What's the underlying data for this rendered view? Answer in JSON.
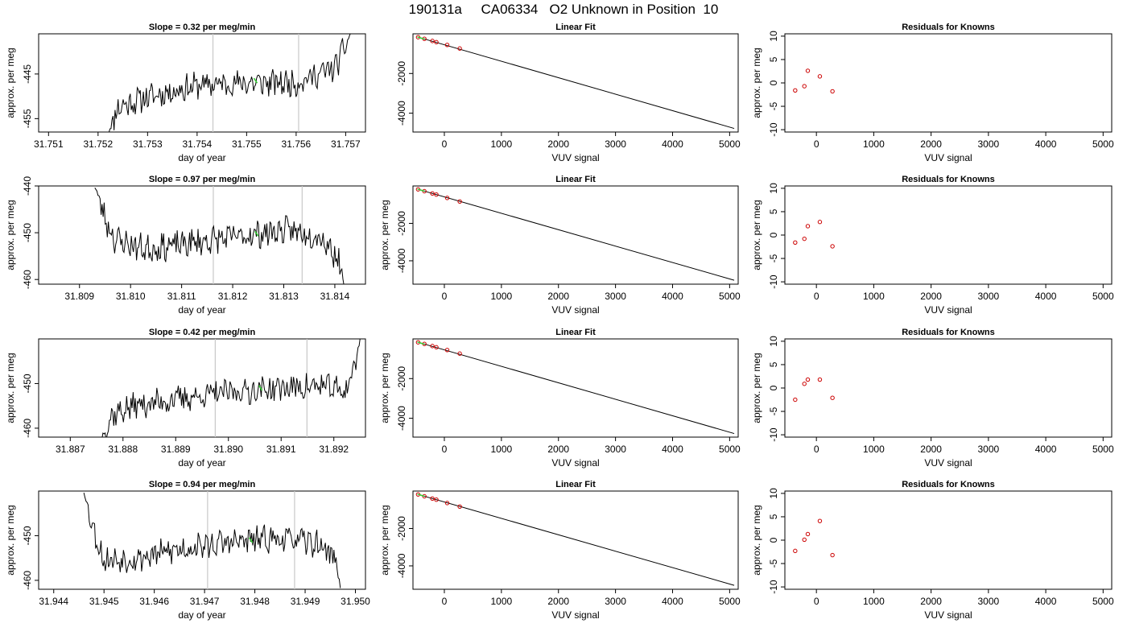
{
  "figure": {
    "title": "190131a     CA06334   O2 Unknown in Position  10",
    "colors": {
      "trace": "#000000",
      "marker_green": "#33cc33",
      "residual_red": "#cc0000",
      "vline_gray": "#c8c8c8"
    }
  },
  "chart_data": [
    {
      "type": "line",
      "panel": "slope",
      "row": 1,
      "title": "Slope =  0.32  per meg/min",
      "xlabel": "day of year",
      "ylabel": "approx. per meg",
      "xlim": [
        31.7508,
        31.7574
      ],
      "ylim": [
        -458,
        -436
      ],
      "xticks": [
        31.751,
        31.752,
        31.753,
        31.754,
        31.755,
        31.756,
        31.757
      ],
      "xtick_labels": [
        "31.751",
        "31.752",
        "31.753",
        "31.754",
        "31.755",
        "31.756",
        "31.757"
      ],
      "yticks": [
        -445,
        -455
      ],
      "ytick_labels": [
        "-445",
        "-455"
      ],
      "vlines": [
        31.75432,
        31.75605
      ],
      "green_point": [
        31.75518,
        -446.5
      ],
      "trace_seed": 11,
      "series": [
        {
          "x": [
            31.7522,
            31.7524,
            31.7529,
            31.754,
            31.755,
            31.756,
            31.7568,
            31.7571
          ],
          "y": [
            -458.5,
            -452.5,
            -450.5,
            -447.5,
            -447.0,
            -447.0,
            -443.5,
            -436
          ]
        }
      ]
    },
    {
      "type": "scatter",
      "panel": "linear-fit",
      "row": 1,
      "title": "Linear Fit",
      "xlabel": "VUV signal",
      "ylabel": "",
      "xlim": [
        -550,
        5150
      ],
      "ylim": [
        -4950,
        0
      ],
      "xticks": [
        0,
        1000,
        2000,
        3000,
        4000,
        5000
      ],
      "xtick_labels": [
        "0",
        "1000",
        "2000",
        "3000",
        "4000",
        "5000"
      ],
      "yticks": [
        -2000,
        -4000
      ],
      "ytick_labels": [
        "-2000",
        "-4000"
      ],
      "fit_line": {
        "x": [
          -460,
          5080
        ],
        "y": [
          -170,
          -4770
        ]
      },
      "known_points": {
        "x": [
          -460,
          -350,
          -210,
          -140,
          50,
          270
        ],
        "y": [
          -170,
          -250,
          -360,
          -420,
          -560,
          -740
        ]
      },
      "unknown_points": {
        "x": [
          -430,
          -390
        ],
        "y": [
          -195,
          -230
        ]
      }
    },
    {
      "type": "scatter",
      "panel": "residuals",
      "row": 1,
      "title": "Residuals for Knowns",
      "xlabel": "VUV signal",
      "ylabel": "approx. per meg",
      "xlim": [
        -550,
        5150
      ],
      "ylim": [
        -10.5,
        10.5
      ],
      "xticks": [
        0,
        1000,
        2000,
        3000,
        4000,
        5000
      ],
      "xtick_labels": [
        "0",
        "1000",
        "2000",
        "3000",
        "4000",
        "5000"
      ],
      "yticks": [
        10,
        5,
        0,
        -5,
        -10
      ],
      "ytick_labels": [
        "10",
        "5",
        "0",
        "-5",
        "-10"
      ],
      "points": {
        "x": [
          -370,
          -210,
          -150,
          60,
          280
        ],
        "y": [
          -1.6,
          -0.7,
          2.6,
          1.4,
          -1.8
        ]
      }
    },
    {
      "type": "line",
      "panel": "slope",
      "row": 2,
      "title": "Slope =  0.97  per meg/min",
      "xlabel": "day of year",
      "ylabel": "approx. per meg",
      "xlim": [
        31.8082,
        31.8146
      ],
      "ylim": [
        -461,
        -440
      ],
      "xticks": [
        31.809,
        31.81,
        31.811,
        31.812,
        31.813,
        31.814
      ],
      "xtick_labels": [
        "31.809",
        "31.810",
        "31.811",
        "31.812",
        "31.813",
        "31.814"
      ],
      "yticks": [
        -440,
        -450,
        -460
      ],
      "ytick_labels": [
        "-440",
        "-450",
        "-460"
      ],
      "vlines": [
        31.81162,
        31.81336
      ],
      "green_point": [
        31.81247,
        -450.2
      ],
      "trace_seed": 23,
      "series": [
        {
          "x": [
            31.8093,
            31.8095,
            31.8097,
            31.8103,
            31.811,
            31.812,
            31.813,
            31.8137,
            31.8141,
            31.8142
          ],
          "y": [
            -440,
            -447,
            -451.5,
            -453.5,
            -452.5,
            -451,
            -449.5,
            -450.5,
            -456,
            -462
          ]
        }
      ]
    },
    {
      "type": "scatter",
      "panel": "linear-fit",
      "row": 2,
      "title": "Linear Fit",
      "xlabel": "VUV signal",
      "ylabel": "approx. per meg",
      "xlim": [
        -550,
        5150
      ],
      "ylim": [
        -5250,
        0
      ],
      "xticks": [
        0,
        1000,
        2000,
        3000,
        4000,
        5000
      ],
      "xtick_labels": [
        "0",
        "1000",
        "2000",
        "3000",
        "4000",
        "5000"
      ],
      "yticks": [
        -2000,
        -4000
      ],
      "ytick_labels": [
        "-2000",
        "-4000"
      ],
      "fit_line": {
        "x": [
          -460,
          5080
        ],
        "y": [
          -180,
          -5040
        ]
      },
      "known_points": {
        "x": [
          -460,
          -350,
          -210,
          -140,
          50,
          270
        ],
        "y": [
          -180,
          -280,
          -400,
          -460,
          -640,
          -830
        ]
      },
      "unknown_points": {
        "x": [
          -430,
          -390
        ],
        "y": [
          -205,
          -240
        ]
      }
    },
    {
      "type": "scatter",
      "panel": "residuals",
      "row": 2,
      "title": "Residuals for Knowns",
      "xlabel": "VUV signal",
      "ylabel": "approx. per meg",
      "xlim": [
        -550,
        5150
      ],
      "ylim": [
        -10.5,
        10.5
      ],
      "xticks": [
        0,
        1000,
        2000,
        3000,
        4000,
        5000
      ],
      "xtick_labels": [
        "0",
        "1000",
        "2000",
        "3000",
        "4000",
        "5000"
      ],
      "yticks": [
        10,
        5,
        0,
        -5,
        -10
      ],
      "ytick_labels": [
        "10",
        "5",
        "0",
        "-5",
        "-10"
      ],
      "points": {
        "x": [
          -370,
          -210,
          -150,
          60,
          280
        ],
        "y": [
          -1.6,
          -0.8,
          1.9,
          2.8,
          -2.4
        ]
      }
    },
    {
      "type": "line",
      "panel": "slope",
      "row": 3,
      "title": "Slope =  0.42  per meg/min",
      "xlabel": "day of year",
      "ylabel": "approx. per meg",
      "xlim": [
        31.8864,
        31.8926
      ],
      "ylim": [
        -462,
        -440
      ],
      "xticks": [
        31.887,
        31.888,
        31.889,
        31.89,
        31.891,
        31.892
      ],
      "xtick_labels": [
        "31.887",
        "31.888",
        "31.889",
        "31.890",
        "31.891",
        "31.892"
      ],
      "yticks": [
        -450,
        -460
      ],
      "ytick_labels": [
        "-450",
        "-460"
      ],
      "vlines": [
        31.88975,
        31.89149
      ],
      "green_point": [
        31.89061,
        -451.0
      ],
      "trace_seed": 37,
      "series": [
        {
          "x": [
            31.8876,
            31.8878,
            31.8882,
            31.889,
            31.89,
            31.891,
            31.8918,
            31.8922,
            31.8924,
            31.8925
          ],
          "y": [
            -462,
            -457,
            -455,
            -453.5,
            -452,
            -451,
            -450.5,
            -452,
            -446,
            -440
          ]
        }
      ]
    },
    {
      "type": "scatter",
      "panel": "linear-fit",
      "row": 3,
      "title": "Linear Fit",
      "xlabel": "VUV signal",
      "ylabel": "approx. per meg",
      "xlim": [
        -550,
        5150
      ],
      "ylim": [
        -4950,
        0
      ],
      "xticks": [
        0,
        1000,
        2000,
        3000,
        4000,
        5000
      ],
      "xtick_labels": [
        "0",
        "1000",
        "2000",
        "3000",
        "4000",
        "5000"
      ],
      "yticks": [
        -2000,
        -4000
      ],
      "ytick_labels": [
        "-2000",
        "-4000"
      ],
      "fit_line": {
        "x": [
          -460,
          5080
        ],
        "y": [
          -170,
          -4770
        ]
      },
      "known_points": {
        "x": [
          -460,
          -350,
          -210,
          -140,
          50,
          270
        ],
        "y": [
          -170,
          -250,
          -360,
          -420,
          -560,
          -740
        ]
      },
      "unknown_points": {
        "x": [
          -430,
          -390
        ],
        "y": [
          -195,
          -230
        ]
      }
    },
    {
      "type": "scatter",
      "panel": "residuals",
      "row": 3,
      "title": "Residuals for Knowns",
      "xlabel": "VUV signal",
      "ylabel": "approx. per meg",
      "xlim": [
        -550,
        5150
      ],
      "ylim": [
        -10.5,
        10.5
      ],
      "xticks": [
        0,
        1000,
        2000,
        3000,
        4000,
        5000
      ],
      "xtick_labels": [
        "0",
        "1000",
        "2000",
        "3000",
        "4000",
        "5000"
      ],
      "yticks": [
        10,
        5,
        0,
        -5,
        -10
      ],
      "ytick_labels": [
        "10",
        "5",
        "0",
        "-5",
        "-10"
      ],
      "points": {
        "x": [
          -370,
          -210,
          -150,
          60,
          280
        ],
        "y": [
          -2.5,
          0.9,
          1.8,
          1.8,
          -2.1
        ]
      }
    },
    {
      "type": "line",
      "panel": "slope",
      "row": 4,
      "title": "Slope =  0.94  per meg/min",
      "xlabel": "day of year",
      "ylabel": "approx. per meg",
      "xlim": [
        31.9437,
        31.9502
      ],
      "ylim": [
        -462,
        -440
      ],
      "xticks": [
        31.944,
        31.945,
        31.946,
        31.947,
        31.948,
        31.949,
        31.95
      ],
      "xtick_labels": [
        "31.944",
        "31.945",
        "31.946",
        "31.947",
        "31.948",
        "31.949",
        "31.950"
      ],
      "yticks": [
        -450,
        -460
      ],
      "ytick_labels": [
        "-450",
        "-460"
      ],
      "vlines": [
        31.94706,
        31.94879
      ],
      "green_point": [
        31.94792,
        -451.0
      ],
      "trace_seed": 53,
      "series": [
        {
          "x": [
            31.9446,
            31.9448,
            31.945,
            31.9457,
            31.9465,
            31.9475,
            31.9485,
            31.9493,
            31.9496,
            31.9497
          ],
          "y": [
            -440,
            -449,
            -455.5,
            -455,
            -453,
            -451.5,
            -450.5,
            -452,
            -455,
            -462
          ]
        }
      ]
    },
    {
      "type": "scatter",
      "panel": "linear-fit",
      "row": 4,
      "title": "Linear Fit",
      "xlabel": "VUV signal",
      "ylabel": "approx. per meg",
      "xlim": [
        -550,
        5150
      ],
      "ylim": [
        -5250,
        0
      ],
      "xticks": [
        0,
        1000,
        2000,
        3000,
        4000,
        5000
      ],
      "xtick_labels": [
        "0",
        "1000",
        "2000",
        "3000",
        "4000",
        "5000"
      ],
      "yticks": [
        -2000,
        -4000
      ],
      "ytick_labels": [
        "-2000",
        "-4000"
      ],
      "fit_line": {
        "x": [
          -460,
          5080
        ],
        "y": [
          -180,
          -5040
        ]
      },
      "known_points": {
        "x": [
          -460,
          -350,
          -210,
          -140,
          50,
          270
        ],
        "y": [
          -180,
          -280,
          -400,
          -460,
          -640,
          -830
        ]
      },
      "unknown_points": {
        "x": [
          -430,
          -390
        ],
        "y": [
          -205,
          -240
        ]
      }
    },
    {
      "type": "scatter",
      "panel": "residuals",
      "row": 4,
      "title": "Residuals for Knowns",
      "xlabel": "VUV signal",
      "ylabel": "approx. per meg",
      "xlim": [
        -550,
        5150
      ],
      "ylim": [
        -10.5,
        10.5
      ],
      "xticks": [
        0,
        1000,
        2000,
        3000,
        4000,
        5000
      ],
      "xtick_labels": [
        "0",
        "1000",
        "2000",
        "3000",
        "4000",
        "5000"
      ],
      "yticks": [
        10,
        5,
        0,
        -5,
        -10
      ],
      "ytick_labels": [
        "10",
        "5",
        "0",
        "-5",
        "-10"
      ],
      "points": {
        "x": [
          -370,
          -210,
          -150,
          60,
          280
        ],
        "y": [
          -2.3,
          0.1,
          1.3,
          4.1,
          -3.2
        ]
      }
    }
  ]
}
